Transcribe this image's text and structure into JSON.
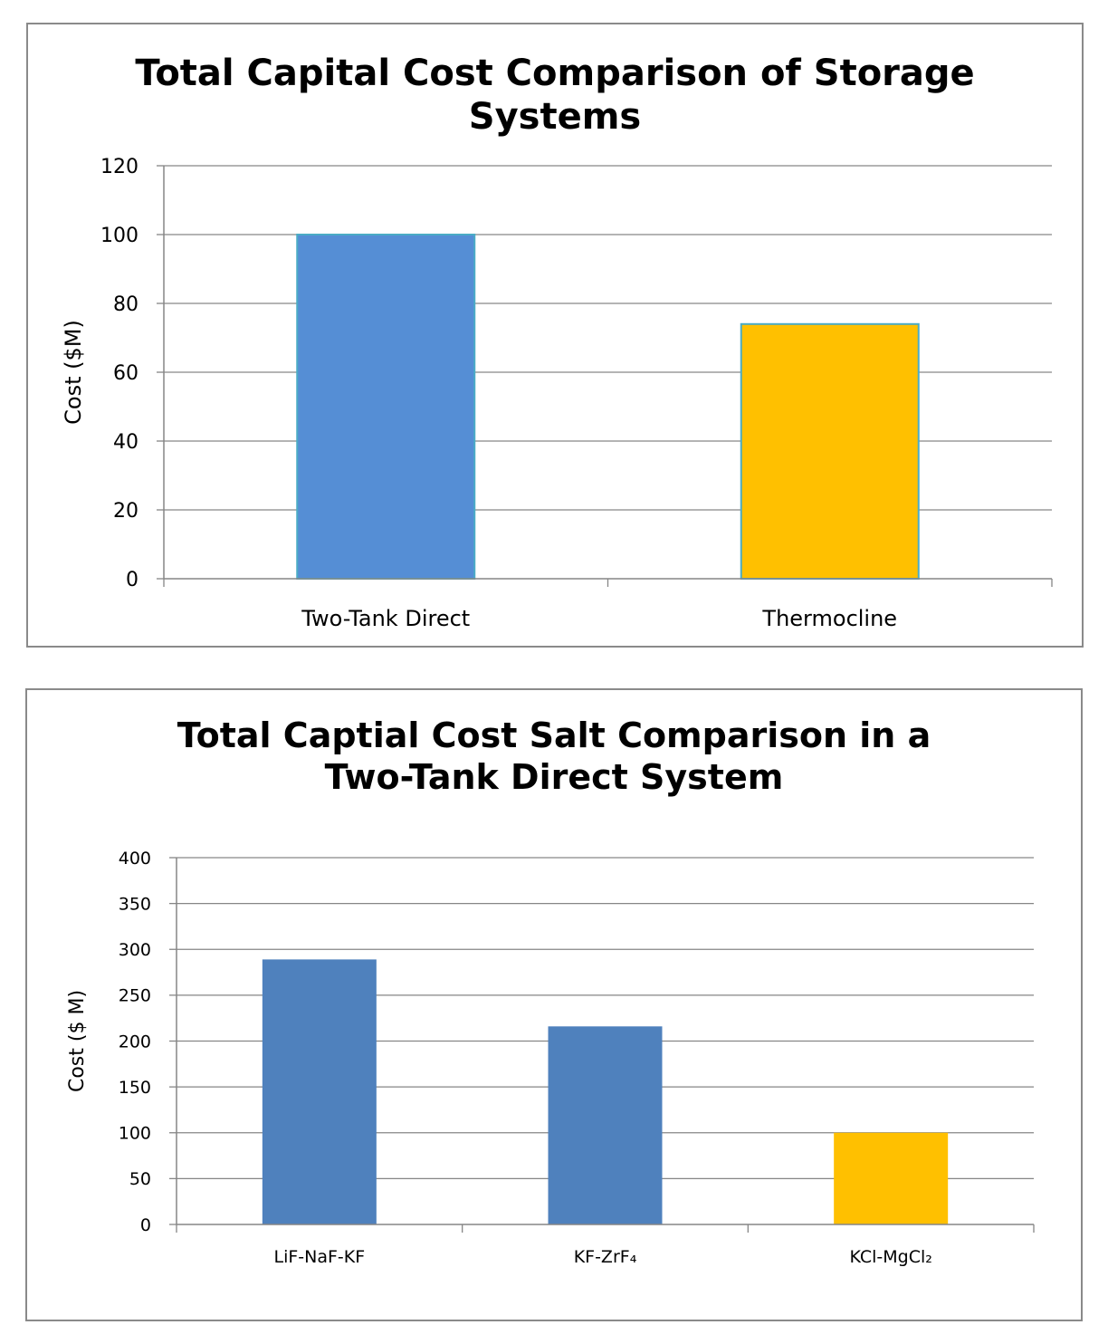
{
  "chart_data": [
    {
      "type": "bar",
      "title_line1": "Total Capital  Cost Comparison  of Storage",
      "title_line2": "Systems",
      "categories": [
        "Two-Tank Direct",
        "Thermocline"
      ],
      "values": [
        100,
        74
      ],
      "bar_colors": [
        "#558ed5",
        "#ffc000"
      ],
      "bar_outline": "#4bacc6",
      "xlabel": "",
      "ylabel": "Cost ($M)",
      "ylim": [
        0,
        120
      ],
      "yticks": [
        "0",
        "20",
        "40",
        "60",
        "80",
        "100",
        "120"
      ],
      "grid": true,
      "legend": "none"
    },
    {
      "type": "bar",
      "title_line1": "Total Captial Cost Salt Comparison in a",
      "title_line2": "Two-Tank Direct System",
      "categories": [
        "LiF-NaF-KF",
        "KF-ZrF₄",
        "KCl-MgCl₂"
      ],
      "values": [
        289,
        216,
        100
      ],
      "bar_colors": [
        "#4f81bd",
        "#4f81bd",
        "#ffc000"
      ],
      "xlabel": "",
      "ylabel": "Cost ($ M)",
      "ylim": [
        0,
        400
      ],
      "yticks": [
        "0",
        "50",
        "100",
        "150",
        "200",
        "250",
        "300",
        "350",
        "400"
      ],
      "grid": true,
      "legend": "none"
    }
  ]
}
